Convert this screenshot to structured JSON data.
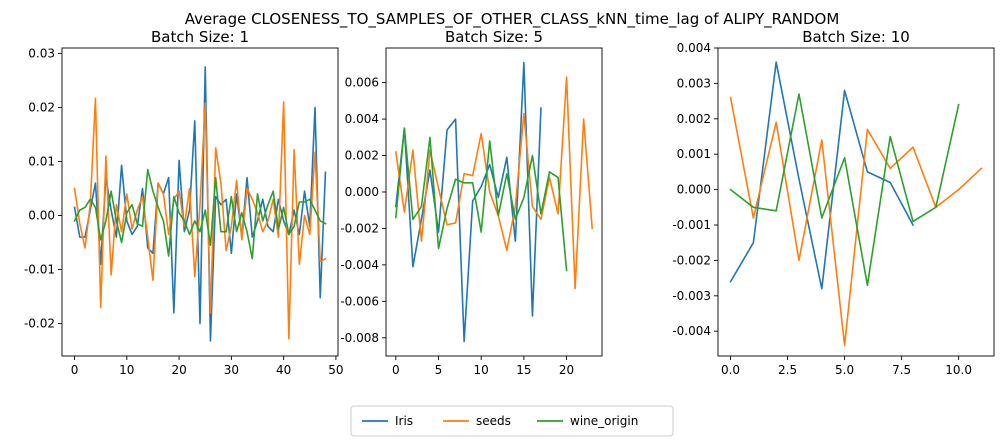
{
  "figure": {
    "suptitle": "Average CLOSENESS_TO_SAMPLES_OF_OTHER_CLASS_kNN_time_lag of ALIPY_RANDOM",
    "legend": {
      "placement": "bottom-center",
      "entries": [
        "Iris",
        "seeds",
        "wine_origin"
      ]
    }
  },
  "series_colors": {
    "Iris": "#1f77b4",
    "seeds": "#ff7f0e",
    "wine_origin": "#2ca02c"
  },
  "chart_data": [
    {
      "type": "line",
      "title": "Batch Size: 1",
      "xlabel": "",
      "ylabel": "",
      "xlim": [
        -2.4,
        50.4
      ],
      "ylim": [
        -0.026,
        0.031
      ],
      "xticks": [
        0,
        10,
        20,
        30,
        40,
        50
      ],
      "xtick_labels": [
        "0",
        "10",
        "20",
        "30",
        "40",
        "50"
      ],
      "yticks": [
        -0.02,
        -0.01,
        0.0,
        0.01,
        0.02,
        0.03
      ],
      "ytick_labels": [
        "-0.02",
        "-0.01",
        "0.00",
        "0.01",
        "0.02",
        "0.03"
      ],
      "grid": false,
      "series": [
        {
          "name": "Iris",
          "x": [
            0,
            1,
            2,
            3,
            4,
            5,
            6,
            7,
            8,
            9,
            10,
            11,
            12,
            13,
            14,
            15,
            16,
            17,
            18,
            19,
            20,
            21,
            22,
            23,
            24,
            25,
            26,
            27,
            28,
            29,
            30,
            31,
            32,
            33,
            34,
            35,
            36,
            37,
            38,
            39,
            40,
            41,
            42,
            43,
            44,
            45,
            46,
            47,
            48
          ],
          "values": [
            0.0015,
            -0.004,
            -0.004,
            0.001,
            0.006,
            -0.009,
            0.007,
            0.001,
            -0.004,
            0.0093,
            -0.001,
            -0.0035,
            -0.002,
            0.005,
            -0.006,
            -0.007,
            0.006,
            0.004,
            0.007,
            -0.018,
            0.0102,
            -0.003,
            0.001,
            0.0175,
            -0.02,
            0.0275,
            -0.0232,
            0.0035,
            0.002,
            0.003,
            -0.007,
            0.004,
            -0.004,
            0.007,
            -0.004,
            -0.001,
            0.003,
            -0.002,
            -0.003,
            0.003,
            -0.001,
            -0.0035,
            0.001,
            -0.0035,
            0.0045,
            -0.002,
            0.02,
            -0.0152,
            0.008
          ]
        },
        {
          "name": "seeds",
          "x": [
            0,
            1,
            2,
            3,
            4,
            5,
            6,
            7,
            8,
            9,
            10,
            11,
            12,
            13,
            14,
            15,
            16,
            17,
            18,
            19,
            20,
            21,
            22,
            23,
            24,
            25,
            26,
            27,
            28,
            29,
            30,
            31,
            32,
            33,
            34,
            35,
            36,
            37,
            38,
            39,
            40,
            41,
            42,
            43,
            44,
            45,
            46,
            47,
            48
          ],
          "values": [
            0.005,
            -0.0015,
            -0.006,
            0.002,
            0.0217,
            -0.017,
            0.011,
            -0.011,
            0.002,
            -0.003,
            0.004,
            -0.0025,
            0.001,
            0.0035,
            -0.004,
            -0.012,
            0.006,
            0.004,
            -0.0035,
            0.003,
            0.0045,
            -0.002,
            0.005,
            -0.0113,
            0.002,
            0.0208,
            -0.018,
            0.0125,
            0.006,
            -0.0065,
            -0.002,
            0.0065,
            -0.0045,
            0.005,
            0.003,
            0.0005,
            -0.003,
            -0.001,
            0.003,
            -0.004,
            0.021,
            -0.0228,
            0.0122,
            -0.009,
            0.0,
            -0.0035,
            0.0117,
            -0.0085,
            -0.008
          ]
        },
        {
          "name": "wine_origin",
          "x": [
            0,
            1,
            2,
            3,
            4,
            5,
            6,
            7,
            8,
            9,
            10,
            11,
            12,
            13,
            14,
            15,
            16,
            17,
            18,
            19,
            20,
            21,
            22,
            23,
            24,
            25,
            26,
            27,
            28,
            29,
            30,
            31,
            32,
            33,
            34,
            35,
            36,
            37,
            38,
            39,
            40,
            41,
            42,
            43,
            44,
            45,
            46,
            47,
            48
          ],
          "values": [
            -0.001,
            0.001,
            0.0015,
            0.003,
            0.0015,
            -0.0045,
            -0.001,
            0.0045,
            -0.001,
            -0.005,
            0.0005,
            0.002,
            -0.0015,
            -0.002,
            0.0085,
            0.0045,
            0.0015,
            -0.001,
            -0.0075,
            0.0035,
            0.0005,
            -0.001,
            -0.0035,
            -0.001,
            -0.003,
            0.001,
            -0.0055,
            0.007,
            -0.003,
            -0.003,
            0.0035,
            -0.003,
            0.0005,
            -0.003,
            -0.008,
            0.004,
            -0.001,
            0.002,
            0.0045,
            -0.0025,
            0.0015,
            -0.0035,
            -0.002,
            0.0025,
            0.0025,
            0.003,
            0.001,
            -0.001,
            -0.0015
          ]
        }
      ]
    },
    {
      "type": "line",
      "title": "Batch Size: 5",
      "xlabel": "",
      "ylabel": "",
      "xlim": [
        -1.15,
        24.15
      ],
      "ylim": [
        -0.009,
        0.0079
      ],
      "xticks": [
        0,
        5,
        10,
        15,
        20
      ],
      "xtick_labels": [
        "0",
        "5",
        "10",
        "15",
        "20"
      ],
      "yticks": [
        -0.008,
        -0.006,
        -0.004,
        -0.002,
        0.0,
        0.002,
        0.004,
        0.006
      ],
      "ytick_labels": [
        "-0.008",
        "-0.006",
        "-0.004",
        "-0.002",
        "0.000",
        "0.002",
        "0.004",
        "0.006"
      ],
      "grid": false,
      "series": [
        {
          "name": "Iris",
          "x": [
            0,
            1,
            2,
            3,
            4,
            5,
            6,
            7,
            8,
            9,
            10,
            11,
            12,
            13,
            14,
            15,
            16,
            17
          ],
          "values": [
            -0.0008,
            0.0035,
            -0.0041,
            -0.0015,
            0.0012,
            -0.0022,
            0.0034,
            0.004,
            -0.0082,
            -0.0005,
            0.0003,
            0.0015,
            -0.0003,
            0.0019,
            -0.0027,
            0.0071,
            -0.0068,
            0.0046
          ]
        },
        {
          "name": "seeds",
          "x": [
            0,
            1,
            2,
            3,
            4,
            5,
            6,
            7,
            8,
            9,
            10,
            11,
            12,
            13,
            14,
            15,
            16,
            17,
            18,
            19,
            20,
            21,
            22,
            23
          ],
          "values": [
            0.0022,
            -0.0011,
            0.0023,
            -0.0027,
            0.0023,
            0.0002,
            -0.0018,
            -0.0017,
            0.001,
            0.0009,
            0.0032,
            0.0,
            -0.0013,
            -0.0032,
            -0.0008,
            0.0043,
            -0.0008,
            -0.0015,
            0.0008,
            -0.0012,
            0.0063,
            -0.0053,
            0.004,
            -0.002
          ]
        },
        {
          "name": "wine_origin",
          "x": [
            0,
            1,
            2,
            3,
            4,
            5,
            6,
            7,
            8,
            9,
            10,
            11,
            12,
            13,
            14,
            15,
            16,
            17,
            18,
            19,
            20
          ],
          "values": [
            -0.0014,
            0.0035,
            -0.0015,
            -0.0008,
            0.003,
            -0.0031,
            -0.0009,
            0.0007,
            0.0005,
            0.0005,
            -0.0022,
            0.0028,
            -0.0013,
            0.001,
            -0.0015,
            -0.0003,
            0.002,
            -0.0012,
            0.0011,
            0.0008,
            -0.0043
          ]
        }
      ]
    },
    {
      "type": "line",
      "title": "Batch Size: 10",
      "xlabel": "",
      "ylabel": "",
      "xlim": [
        -0.55,
        11.55
      ],
      "ylim": [
        -0.0047,
        0.004
      ],
      "xticks": [
        0,
        2.5,
        5.0,
        7.5,
        10.0
      ],
      "xtick_labels": [
        "0.0",
        "2.5",
        "5.0",
        "7.5",
        "10.0"
      ],
      "yticks": [
        -0.004,
        -0.003,
        -0.002,
        -0.001,
        0.0,
        0.001,
        0.002,
        0.003,
        0.004
      ],
      "ytick_labels": [
        "-0.004",
        "-0.003",
        "-0.002",
        "-0.001",
        "0.000",
        "0.001",
        "0.002",
        "0.003",
        "0.004"
      ],
      "grid": false,
      "series": [
        {
          "name": "Iris",
          "x": [
            0,
            1,
            2,
            3,
            4,
            5,
            6,
            7,
            8
          ],
          "values": [
            -0.0026,
            -0.0015,
            0.0036,
            0.0003,
            -0.0028,
            0.0028,
            0.0005,
            0.0002,
            -0.001
          ]
        },
        {
          "name": "seeds",
          "x": [
            0,
            1,
            2,
            3,
            4,
            5,
            6,
            7,
            8,
            9,
            10,
            11
          ],
          "values": [
            0.0026,
            -0.0008,
            0.0019,
            -0.002,
            0.0014,
            -0.0044,
            0.0017,
            0.0006,
            0.0012,
            -0.0005,
            0.0,
            0.0006
          ]
        },
        {
          "name": "wine_origin",
          "x": [
            0,
            1,
            2,
            3,
            4,
            5,
            6,
            7,
            8,
            9,
            10
          ],
          "values": [
            0.0,
            -0.0005,
            -0.0006,
            0.0027,
            -0.0008,
            0.0009,
            -0.0027,
            0.0015,
            -0.0009,
            -0.0005,
            0.0024
          ]
        }
      ]
    }
  ]
}
